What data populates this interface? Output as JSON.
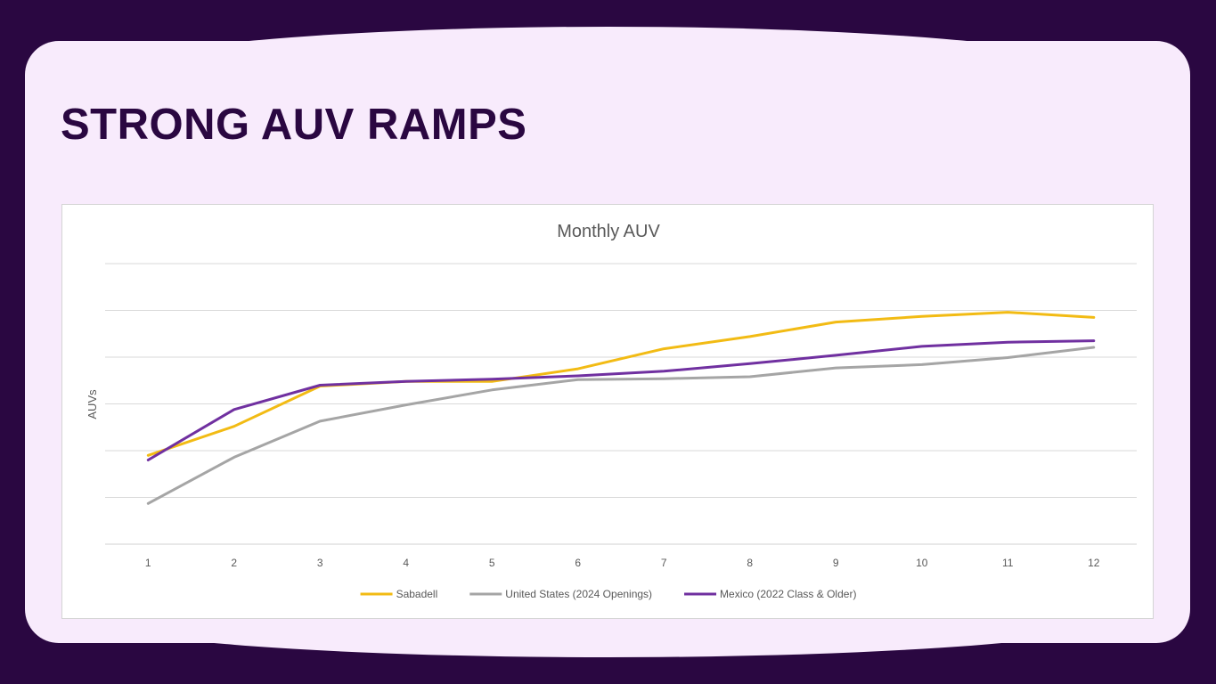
{
  "slide": {
    "title": "STRONG AUV RAMPS"
  },
  "chart_data": {
    "type": "line",
    "title": "Monthly AUV",
    "xlabel": "",
    "ylabel": "AUVs",
    "x": [
      1,
      2,
      3,
      4,
      5,
      6,
      7,
      8,
      9,
      10,
      11,
      12
    ],
    "ylim": [
      0,
      6
    ],
    "ytick_count": 7,
    "y_tick_labels_shown": false,
    "grid": true,
    "legend": "bottom",
    "series": [
      {
        "name": "Sabadell",
        "color": "#f2bb14",
        "values": [
          1.9,
          2.52,
          3.38,
          3.48,
          3.48,
          3.75,
          4.18,
          4.44,
          4.75,
          4.87,
          4.96,
          4.85
        ]
      },
      {
        "name": "United States (2024 Openings)",
        "color": "#a5a5a5",
        "values": [
          0.87,
          1.86,
          2.63,
          2.98,
          3.3,
          3.52,
          3.54,
          3.58,
          3.77,
          3.84,
          3.99,
          4.21
        ]
      },
      {
        "name": "Mexico (2022 Class & Older)",
        "color": "#7030a0",
        "values": [
          1.8,
          2.88,
          3.4,
          3.48,
          3.53,
          3.6,
          3.7,
          3.86,
          4.04,
          4.23,
          4.32,
          4.35
        ]
      }
    ]
  }
}
